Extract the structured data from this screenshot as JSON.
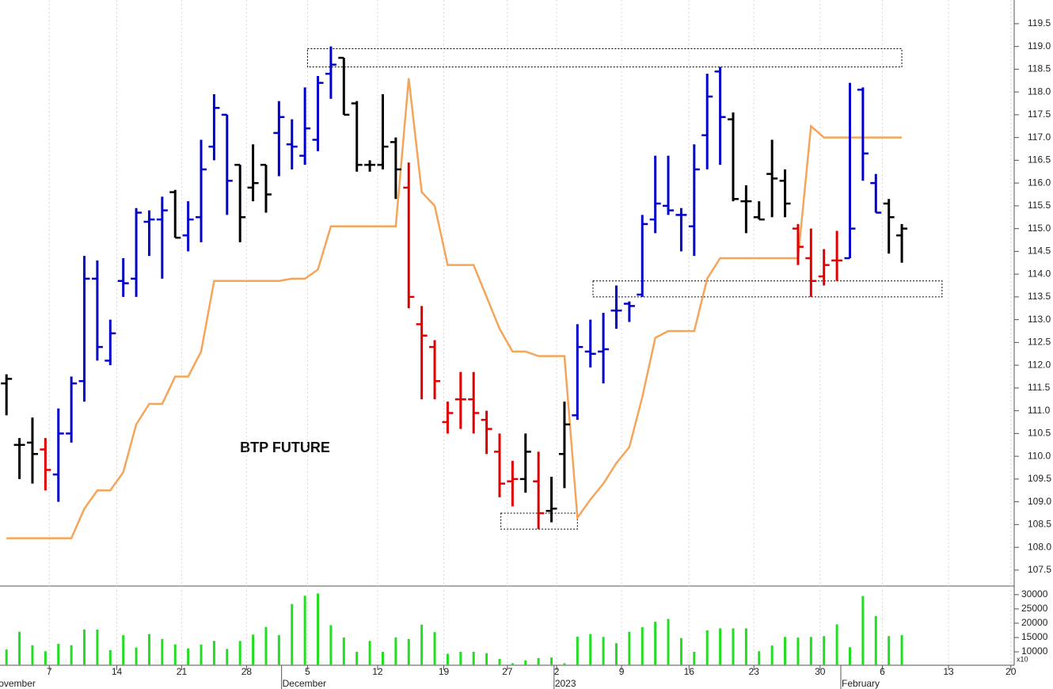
{
  "chart_data": [
    {
      "type": "ohlc",
      "label": "BTP FUTURE",
      "x": [
        0,
        1,
        2,
        3,
        4,
        5,
        6,
        7,
        8,
        9,
        10,
        11,
        12,
        13,
        14,
        15,
        16,
        17,
        18,
        19,
        20,
        21,
        22,
        23,
        24,
        25,
        26,
        27,
        28,
        29,
        30,
        31,
        32,
        33,
        34,
        35,
        36,
        37,
        38,
        39,
        40,
        41,
        42,
        43,
        44,
        45,
        46,
        47,
        48,
        49,
        50,
        51,
        52,
        53,
        54,
        55,
        56,
        57,
        58,
        59,
        60,
        61,
        62,
        63,
        64,
        65,
        66,
        67,
        68,
        69
      ],
      "open": [
        111.6,
        110.25,
        110.3,
        110.15,
        109.6,
        110.5,
        111.65,
        113.9,
        112.1,
        113.85,
        113.9,
        115.15,
        115.2,
        115.8,
        114.85,
        115.25,
        116.8,
        117.5,
        116.4,
        115.9,
        116.4,
        117.1,
        116.85,
        116.6,
        116.95,
        118.4,
        118.75,
        117.75,
        116.4,
        116.4,
        116.9,
        115.9,
        112.9,
        112.4,
        110.75,
        111.25,
        111.25,
        110.8,
        110.1,
        109.45,
        109.5,
        109.45,
        108.8,
        110.05,
        110.9,
        112.3,
        112.3,
        113.2,
        113.35,
        113.55,
        115.2,
        115.5,
        115.3,
        115.05,
        117.05,
        118.45,
        117.4,
        115.6,
        115.25,
        116.2,
        116.05,
        115.0,
        114.35,
        113.95,
        114.3,
        114.35,
        118.05,
        116.0,
        115.55,
        114.85
      ],
      "high": [
        111.8,
        110.4,
        110.85,
        110.4,
        111.05,
        111.75,
        114.4,
        114.3,
        113.0,
        114.35,
        115.45,
        115.4,
        115.7,
        115.85,
        115.6,
        116.95,
        117.95,
        117.5,
        116.4,
        116.85,
        116.4,
        117.8,
        117.4,
        118.1,
        118.35,
        119.0,
        118.75,
        117.8,
        116.5,
        117.95,
        117.0,
        116.45,
        113.3,
        112.55,
        111.2,
        111.85,
        111.85,
        111.0,
        110.5,
        109.9,
        110.5,
        110.1,
        109.55,
        111.2,
        112.9,
        113.0,
        113.15,
        113.75,
        113.4,
        115.3,
        116.6,
        116.6,
        115.45,
        116.85,
        118.4,
        118.55,
        117.55,
        115.95,
        115.6,
        116.95,
        116.3,
        115.1,
        115.0,
        114.55,
        114.95,
        118.2,
        118.1,
        116.2,
        115.65,
        115.1
      ],
      "low": [
        110.9,
        109.5,
        109.4,
        109.25,
        109.0,
        110.3,
        111.2,
        112.1,
        112.0,
        113.5,
        113.5,
        114.4,
        113.9,
        114.8,
        114.5,
        114.7,
        116.5,
        115.3,
        114.7,
        115.6,
        115.35,
        116.15,
        116.3,
        116.4,
        116.7,
        117.85,
        117.5,
        116.25,
        116.25,
        116.3,
        115.65,
        113.25,
        111.25,
        111.25,
        110.5,
        110.6,
        110.5,
        110.05,
        109.1,
        108.9,
        109.2,
        108.4,
        108.55,
        109.3,
        110.8,
        111.95,
        111.6,
        112.8,
        112.95,
        113.5,
        114.9,
        115.3,
        114.5,
        114.4,
        116.3,
        116.4,
        115.6,
        114.9,
        115.2,
        115.25,
        115.25,
        114.2,
        113.5,
        113.75,
        113.85,
        114.35,
        116.05,
        115.35,
        114.45,
        114.25
      ],
      "close": [
        111.7,
        110.25,
        110.05,
        109.7,
        110.5,
        111.6,
        113.9,
        112.4,
        112.7,
        113.8,
        115.35,
        115.2,
        115.4,
        114.8,
        115.2,
        116.3,
        117.65,
        116.05,
        115.25,
        116.0,
        115.75,
        117.45,
        116.8,
        117.2,
        118.2,
        118.6,
        117.5,
        116.4,
        116.4,
        116.8,
        116.3,
        113.5,
        112.65,
        111.65,
        110.95,
        111.25,
        110.95,
        110.6,
        109.4,
        109.5,
        110.1,
        108.75,
        108.85,
        110.7,
        112.4,
        112.25,
        112.35,
        113.2,
        113.3,
        115.1,
        115.55,
        115.4,
        115.3,
        116.3,
        117.9,
        117.45,
        115.65,
        115.6,
        115.2,
        116.1,
        115.55,
        114.6,
        113.85,
        114.2,
        114.3,
        115.0,
        116.65,
        115.35,
        115.25,
        115.0
      ],
      "bar_colors": [
        "#000000",
        "#000000",
        "#000000",
        "#e00000",
        "#0000cc",
        "#0000cc",
        "#0000cc",
        "#0000cc",
        "#0000cc",
        "#0000cc",
        "#0000cc",
        "#0000cc",
        "#0000cc",
        "#000000",
        "#0000cc",
        "#0000cc",
        "#0000cc",
        "#0000cc",
        "#000000",
        "#000000",
        "#000000",
        "#0000cc",
        "#0000cc",
        "#0000cc",
        "#0000cc",
        "#0000cc",
        "#000000",
        "#000000",
        "#000000",
        "#000000",
        "#000000",
        "#e00000",
        "#e00000",
        "#e00000",
        "#e00000",
        "#e00000",
        "#e00000",
        "#e00000",
        "#e00000",
        "#e00000",
        "#000000",
        "#e00000",
        "#000000",
        "#000000",
        "#0000cc",
        "#0000cc",
        "#0000cc",
        "#0000cc",
        "#0000cc",
        "#0000cc",
        "#0000cc",
        "#0000cc",
        "#0000cc",
        "#0000cc",
        "#0000cc",
        "#0000cc",
        "#000000",
        "#000000",
        "#000000",
        "#000000",
        "#000000",
        "#e00000",
        "#e00000",
        "#e00000",
        "#e00000",
        "#0000cc",
        "#0000cc",
        "#0000cc",
        "#000000",
        "#000000"
      ],
      "line": {
        "color": "#f5a55a",
        "values": [
          108.2,
          108.2,
          108.2,
          108.2,
          108.2,
          108.2,
          108.85,
          109.25,
          109.25,
          109.65,
          110.7,
          111.15,
          111.15,
          111.75,
          111.75,
          112.3,
          113.85,
          113.85,
          113.85,
          113.85,
          113.85,
          113.85,
          113.9,
          113.9,
          114.1,
          115.05,
          115.05,
          115.05,
          115.05,
          115.05,
          115.05,
          118.3,
          115.8,
          115.5,
          114.2,
          114.2,
          114.2,
          113.5,
          112.8,
          112.3,
          112.3,
          112.2,
          112.2,
          112.2,
          108.65,
          109.05,
          109.4,
          109.85,
          110.2,
          111.3,
          112.6,
          112.75,
          112.75,
          112.75,
          113.9,
          114.35,
          114.35,
          114.35,
          114.35,
          114.35,
          114.35,
          114.35,
          117.25,
          117.0,
          117.0,
          117.0,
          117.0,
          117.0,
          117.0,
          117.0
        ]
      },
      "boxes": [
        {
          "x": [
            23.2,
            69.0
          ],
          "y": [
            118.55,
            118.95
          ]
        },
        {
          "x": [
            38.1,
            44.0
          ],
          "y": [
            108.4,
            108.75
          ]
        },
        {
          "x": [
            45.2,
            72.1
          ],
          "y": [
            113.5,
            113.85
          ]
        }
      ],
      "xlim": [
        -0.5,
        77.6
      ],
      "ylim": [
        107.15,
        120.02
      ],
      "yticks": [
        {
          "value": 107.5,
          "label": "107.5"
        },
        {
          "value": 108,
          "label": "108.0"
        },
        {
          "value": 108.5,
          "label": "108.5"
        },
        {
          "value": 109,
          "label": "109.0"
        },
        {
          "value": 109.5,
          "label": "109.5"
        },
        {
          "value": 110,
          "label": "110.0"
        },
        {
          "value": 110.5,
          "label": "110.5"
        },
        {
          "value": 111,
          "label": "111.0"
        },
        {
          "value": 111.5,
          "label": "111.5"
        },
        {
          "value": 112,
          "label": "112.0"
        },
        {
          "value": 112.5,
          "label": "112.5"
        },
        {
          "value": 113,
          "label": "113.0"
        },
        {
          "value": 113.5,
          "label": "113.5"
        },
        {
          "value": 114,
          "label": "114.0"
        },
        {
          "value": 114.5,
          "label": "114.5"
        },
        {
          "value": 115,
          "label": "115.0"
        },
        {
          "value": 115.5,
          "label": "115.5"
        },
        {
          "value": 116,
          "label": "116.0"
        },
        {
          "value": 116.5,
          "label": "116.5"
        },
        {
          "value": 117,
          "label": "117.0"
        },
        {
          "value": 117.5,
          "label": "117.5"
        },
        {
          "value": 118,
          "label": "118.0"
        },
        {
          "value": 118.5,
          "label": "118.5"
        },
        {
          "value": 119,
          "label": "119.0"
        },
        {
          "value": 119.5,
          "label": "119.5"
        }
      ],
      "xticks": [
        {
          "value": 3.3,
          "label": "7"
        },
        {
          "value": 8.5,
          "label": "14"
        },
        {
          "value": 13.5,
          "label": "21"
        },
        {
          "value": 18.5,
          "label": "28"
        },
        {
          "value": 23.2,
          "label": "5"
        },
        {
          "value": 28.6,
          "label": "12"
        },
        {
          "value": 33.7,
          "label": "19"
        },
        {
          "value": 38.6,
          "label": "27"
        },
        {
          "value": 42.4,
          "label": "2"
        },
        {
          "value": 47.4,
          "label": "9"
        },
        {
          "value": 52.6,
          "label": "16"
        },
        {
          "value": 57.6,
          "label": "23"
        },
        {
          "value": 62.7,
          "label": "30"
        },
        {
          "value": 67.5,
          "label": "6"
        },
        {
          "value": 72.6,
          "label": "13"
        },
        {
          "value": 77.4,
          "label": "20"
        }
      ],
      "month_labels": [
        {
          "value": -1.2,
          "label": "November"
        },
        {
          "value": 21.2,
          "label": "December"
        },
        {
          "value": 42.2,
          "label": "2023"
        },
        {
          "value": 64.3,
          "label": "February"
        }
      ],
      "xgrid": true
    },
    {
      "type": "bar",
      "color": "#22dd22",
      "unit_label": "x10",
      "x": [
        0,
        1,
        2,
        3,
        4,
        5,
        6,
        7,
        8,
        9,
        10,
        11,
        12,
        13,
        14,
        15,
        16,
        17,
        18,
        19,
        20,
        21,
        22,
        23,
        24,
        25,
        26,
        27,
        28,
        29,
        30,
        31,
        32,
        33,
        34,
        35,
        36,
        37,
        38,
        39,
        40,
        41,
        42,
        43,
        44,
        45,
        46,
        47,
        48,
        49,
        50,
        51,
        52,
        53,
        54,
        55,
        56,
        57,
        58,
        59,
        60,
        61,
        62,
        63,
        64,
        65,
        66,
        67,
        68,
        69
      ],
      "values": [
        10800,
        17000,
        12300,
        10200,
        12800,
        12300,
        17800,
        17800,
        10600,
        15800,
        11500,
        16200,
        14500,
        12600,
        11200,
        12500,
        13800,
        11000,
        13800,
        16000,
        18700,
        15800,
        26700,
        29600,
        30400,
        19300,
        15000,
        10000,
        13800,
        10000,
        15000,
        14500,
        19500,
        16900,
        9300,
        10000,
        10000,
        9500,
        7500,
        6000,
        7000,
        7800,
        8000,
        6000,
        15300,
        16200,
        15200,
        13000,
        17000,
        18600,
        20500,
        21500,
        14800,
        10000,
        17500,
        18200,
        18200,
        18200,
        10200,
        12200,
        15200,
        15000,
        15200,
        15500,
        19600,
        11600,
        29500,
        22500,
        15500,
        15800
      ],
      "ylim": [
        5300,
        33000
      ],
      "yticks": [
        10000,
        15000,
        20000,
        25000,
        30000
      ]
    }
  ]
}
